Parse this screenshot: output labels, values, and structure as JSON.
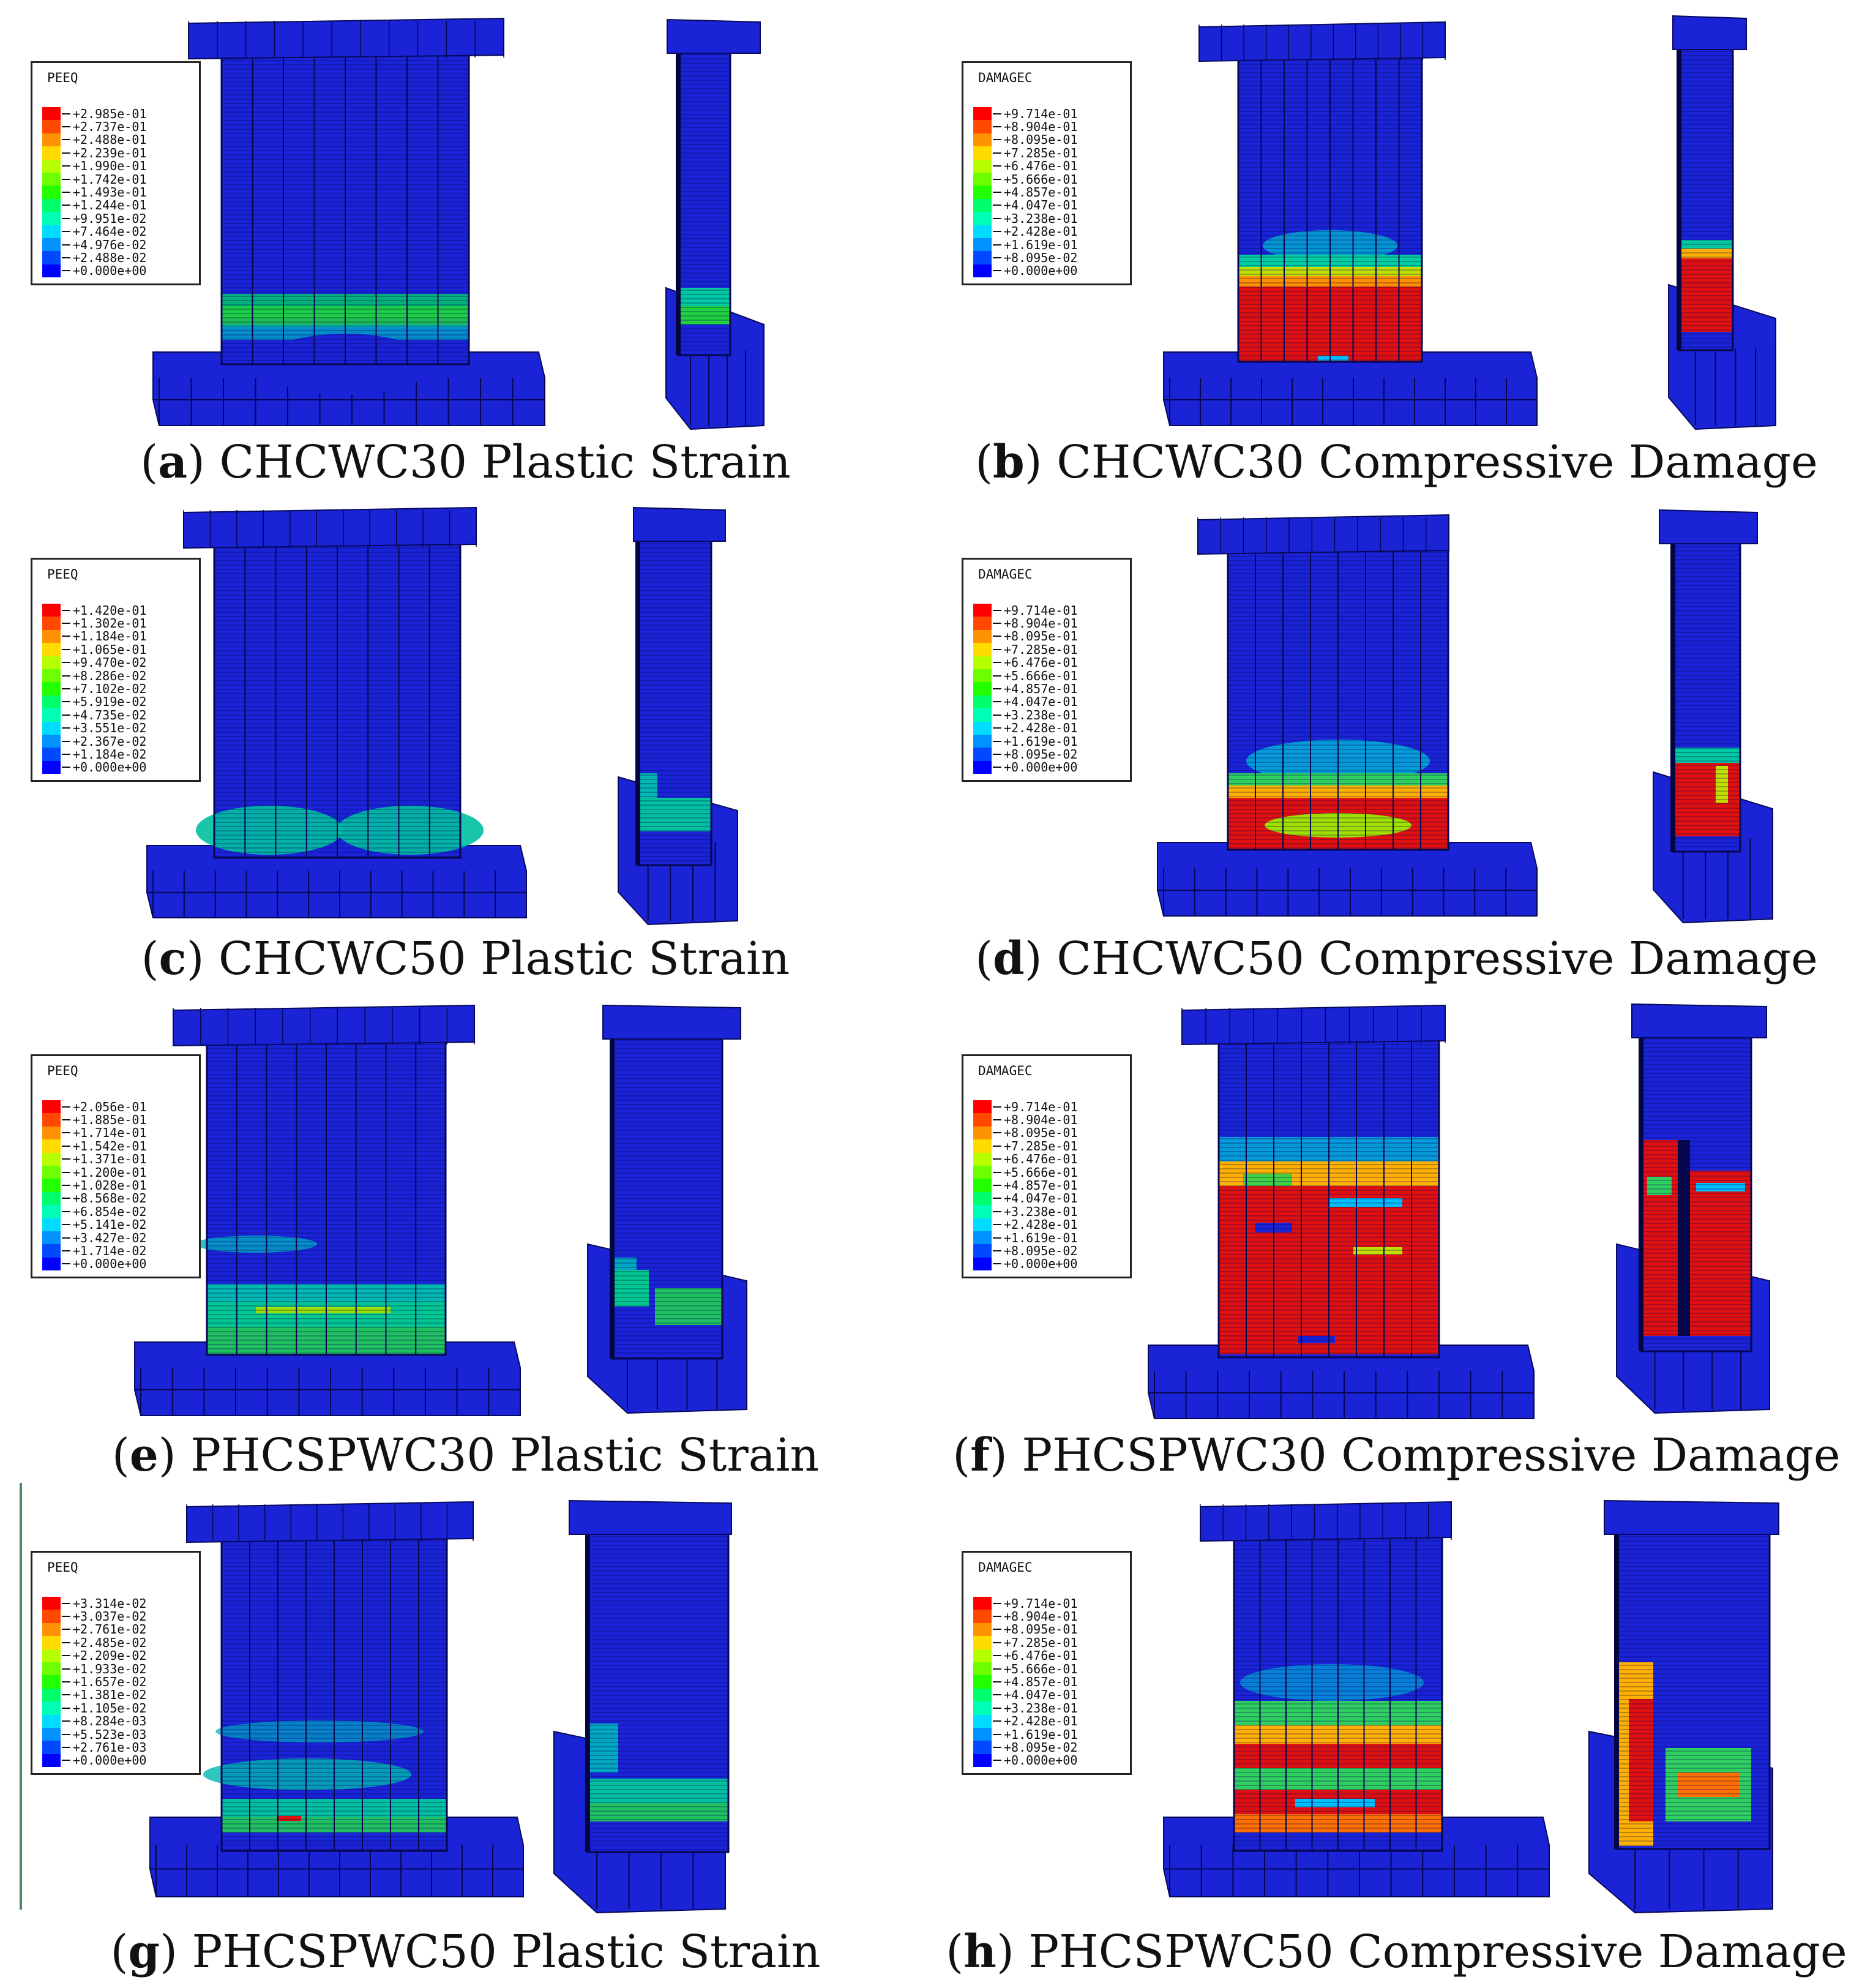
{
  "colors": {
    "blue": "#1a23d6",
    "damage_ramp": [
      "#0000ff",
      "#0049ff",
      "#0092ff",
      "#00dbff",
      "#00ffb6",
      "#00ff6d",
      "#00ff24",
      "#24ff00",
      "#6dff00",
      "#b6ff00",
      "#ffdb00",
      "#ff9200",
      "#ff4900",
      "#ff0000"
    ]
  },
  "panels": [
    {
      "id": "a",
      "letter": "a",
      "caption": "CHCWC30 Plastic Strain",
      "legend": {
        "title": "PEEQ",
        "values": [
          "+2.985e-01",
          "+2.737e-01",
          "+2.488e-01",
          "+2.239e-01",
          "+1.990e-01",
          "+1.742e-01",
          "+1.493e-01",
          "+1.244e-01",
          "+9.951e-02",
          "+7.464e-02",
          "+4.976e-02",
          "+2.488e-02",
          "+0.000e+00"
        ]
      }
    },
    {
      "id": "b",
      "letter": "b",
      "caption": "CHCWC30 Compressive Damage",
      "legend": {
        "title": "DAMAGEC",
        "values": [
          "+9.714e-01",
          "+8.904e-01",
          "+8.095e-01",
          "+7.285e-01",
          "+6.476e-01",
          "+5.666e-01",
          "+4.857e-01",
          "+4.047e-01",
          "+3.238e-01",
          "+2.428e-01",
          "+1.619e-01",
          "+8.095e-02",
          "+0.000e+00"
        ]
      }
    },
    {
      "id": "c",
      "letter": "c",
      "caption": "CHCWC50 Plastic Strain",
      "legend": {
        "title": "PEEQ",
        "values": [
          "+1.420e-01",
          "+1.302e-01",
          "+1.184e-01",
          "+1.065e-01",
          "+9.470e-02",
          "+8.286e-02",
          "+7.102e-02",
          "+5.919e-02",
          "+4.735e-02",
          "+3.551e-02",
          "+2.367e-02",
          "+1.184e-02",
          "+0.000e+00"
        ]
      }
    },
    {
      "id": "d",
      "letter": "d",
      "caption": "CHCWC50 Compressive Damage",
      "legend": {
        "title": "DAMAGEC",
        "values": [
          "+9.714e-01",
          "+8.904e-01",
          "+8.095e-01",
          "+7.285e-01",
          "+6.476e-01",
          "+5.666e-01",
          "+4.857e-01",
          "+4.047e-01",
          "+3.238e-01",
          "+2.428e-01",
          "+1.619e-01",
          "+8.095e-02",
          "+0.000e+00"
        ]
      }
    },
    {
      "id": "e",
      "letter": "e",
      "caption": "PHCSPWC30 Plastic Strain",
      "legend": {
        "title": "PEEQ",
        "values": [
          "+2.056e-01",
          "+1.885e-01",
          "+1.714e-01",
          "+1.542e-01",
          "+1.371e-01",
          "+1.200e-01",
          "+1.028e-01",
          "+8.568e-02",
          "+6.854e-02",
          "+5.141e-02",
          "+3.427e-02",
          "+1.714e-02",
          "+0.000e+00"
        ]
      }
    },
    {
      "id": "f",
      "letter": "f",
      "caption": "PHCSPWC30 Compressive Damage",
      "legend": {
        "title": "DAMAGEC",
        "values": [
          "+9.714e-01",
          "+8.904e-01",
          "+8.095e-01",
          "+7.285e-01",
          "+6.476e-01",
          "+5.666e-01",
          "+4.857e-01",
          "+4.047e-01",
          "+3.238e-01",
          "+2.428e-01",
          "+1.619e-01",
          "+8.095e-02",
          "+0.000e+00"
        ]
      }
    },
    {
      "id": "g",
      "letter": "g",
      "caption": "PHCSPWC50 Plastic Strain",
      "legend": {
        "title": "PEEQ",
        "values": [
          "+3.314e-02",
          "+3.037e-02",
          "+2.761e-02",
          "+2.485e-02",
          "+2.209e-02",
          "+1.933e-02",
          "+1.657e-02",
          "+1.381e-02",
          "+1.105e-02",
          "+8.284e-03",
          "+5.523e-03",
          "+2.761e-03",
          "+0.000e+00"
        ]
      }
    },
    {
      "id": "h",
      "letter": "h",
      "caption": "PHCSPWC50 Compressive Damage",
      "legend": {
        "title": "DAMAGEC",
        "values": [
          "+9.714e-01",
          "+8.904e-01",
          "+8.095e-01",
          "+7.285e-01",
          "+6.476e-01",
          "+5.666e-01",
          "+4.857e-01",
          "+4.047e-01",
          "+3.238e-01",
          "+2.428e-01",
          "+1.619e-01",
          "+8.095e-02",
          "+0.000e+00"
        ]
      }
    }
  ]
}
